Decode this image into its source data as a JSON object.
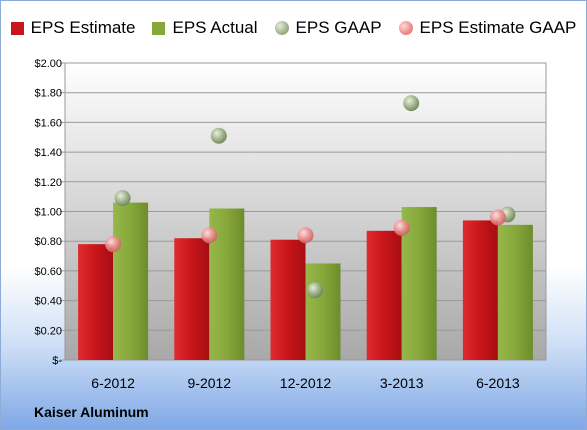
{
  "company": "Kaiser Aluminum",
  "legend": [
    {
      "key": "estimate",
      "label": "EPS Estimate",
      "shape": "square",
      "color": "#c8151b"
    },
    {
      "key": "actual",
      "label": "EPS Actual",
      "shape": "square",
      "color": "#86a83b"
    },
    {
      "key": "gaap",
      "label": "EPS GAAP",
      "shape": "circle",
      "color": "#a3b58f"
    },
    {
      "key": "estimate_gaap",
      "label": "EPS Estimate GAAP",
      "shape": "circle",
      "color": "#ee9090"
    }
  ],
  "chart_data": {
    "type": "bar",
    "categories": [
      "6-2012",
      "9-2012",
      "12-2012",
      "3-2013",
      "6-2013"
    ],
    "series": [
      {
        "name": "EPS Estimate",
        "kind": "bar",
        "color": "#c8151b",
        "values": [
          0.78,
          0.82,
          0.81,
          0.87,
          0.94
        ]
      },
      {
        "name": "EPS Actual",
        "kind": "bar",
        "color": "#86a83b",
        "values": [
          1.06,
          1.02,
          0.65,
          1.03,
          0.91
        ]
      },
      {
        "name": "EPS GAAP",
        "kind": "point",
        "color": "#a3b58f",
        "values": [
          1.09,
          1.51,
          0.47,
          1.73,
          0.98
        ]
      },
      {
        "name": "EPS Estimate GAAP",
        "kind": "point",
        "color": "#ee9090",
        "values": [
          0.78,
          0.84,
          0.84,
          0.89,
          0.96
        ]
      }
    ],
    "y_ticks": [
      "$-",
      "$0.20",
      "$0.40",
      "$0.60",
      "$0.80",
      "$1.00",
      "$1.20",
      "$1.40",
      "$1.60",
      "$1.80",
      "$2.00"
    ],
    "ylim": [
      0,
      2.0
    ],
    "grid": true,
    "legend_position": "top",
    "title": "",
    "xlabel": "",
    "ylabel": ""
  }
}
